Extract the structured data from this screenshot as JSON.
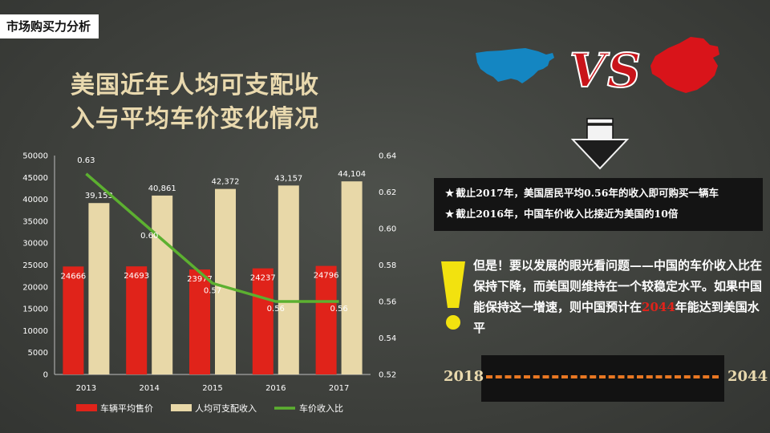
{
  "page_tag": "市场购买力分析",
  "title_lines": [
    "美国近年人均可支配收",
    "入与平均车价变化情况"
  ],
  "vs_text": "VS",
  "notes": [
    "截止2017年，美国居民平均0.56年的收入即可购买一辆车",
    "截止2016年，中国车价收入比接近为美国的10倍"
  ],
  "star_glyph": "★",
  "paragraph": {
    "before": "但是！要以发展的眼光看问题——中国的车价收入比在保持下降，而美国则维持在一个较稳定水平。如果中国能保持这一增速，则中国预计在",
    "highlight": "2044",
    "after": "年能达到美国水平"
  },
  "timeline": {
    "start": "2018",
    "end": "2044"
  },
  "colors": {
    "bar_price": "#e0231a",
    "bar_income": "#e8d8a8",
    "line_ratio": "#5cb030",
    "title": "#e9d9ae",
    "dash": "#e87722"
  },
  "chart_data": {
    "type": "bar",
    "categories": [
      "2013",
      "2014",
      "2015",
      "2016",
      "2017"
    ],
    "series": [
      {
        "name": "车辆平均售价",
        "kind": "bar",
        "axis": "left",
        "values": [
          24666,
          24693,
          23977,
          24237,
          24796
        ],
        "labels": [
          "24666",
          "24693",
          "23977",
          "24237",
          "24796"
        ]
      },
      {
        "name": "人均可支配收入",
        "kind": "bar",
        "axis": "left",
        "values": [
          39153,
          40861,
          42372,
          43157,
          44104
        ],
        "labels": [
          "39,153",
          "40,861",
          "42,372",
          "43,157",
          "44,104"
        ]
      },
      {
        "name": "车价收入比",
        "kind": "line",
        "axis": "right",
        "values": [
          0.63,
          0.6,
          0.57,
          0.56,
          0.56
        ],
        "labels": [
          "0.63",
          "0.60",
          "0.57",
          "0.56",
          "0.56"
        ]
      }
    ],
    "y_left": {
      "min": 0,
      "max": 50000,
      "ticks": [
        "0",
        "5000",
        "10000",
        "15000",
        "20000",
        "25000",
        "30000",
        "35000",
        "40000",
        "45000",
        "50000"
      ]
    },
    "y_right": {
      "min": 0.52,
      "max": 0.64,
      "ticks": [
        "0.52",
        "0.54",
        "0.56",
        "0.58",
        "0.60",
        "0.62",
        "0.64"
      ]
    },
    "grid": false,
    "legend": "bottom"
  }
}
